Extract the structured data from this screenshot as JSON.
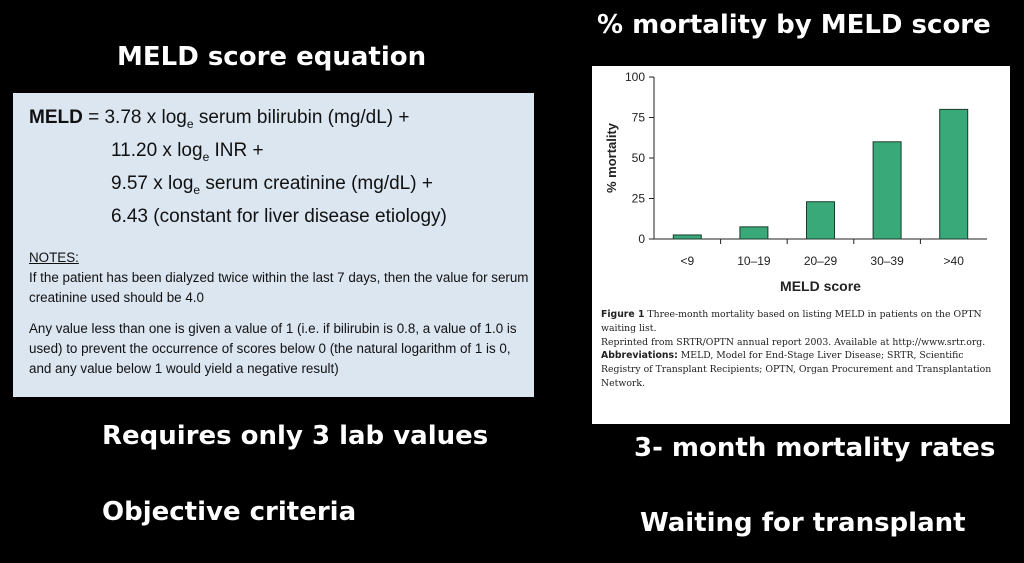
{
  "slide": {
    "meld_title": "MELD score equation",
    "chart_title": "% mortality by MELD score",
    "bullets_left": [
      "Requires only 3 lab values",
      "Objective criteria"
    ],
    "bullets_right": [
      "3- month mortality rates",
      "Waiting for transplant"
    ]
  },
  "equation": {
    "label": "MELD",
    "line1_rest": " = 3.78 x log",
    "sub_e": "e",
    "line1_tail": " serum bilirubin (mg/dL) +",
    "line2_a": "11.20 x log",
    "line2_b": " INR +",
    "line3_a": "9.57 x log",
    "line3_b": " serum creatinine (mg/dL) +",
    "line4": "6.43 (constant for liver disease etiology)",
    "notes_heading": "NOTES:",
    "note1": "If the patient has been dialyzed twice within the last 7 days, then the value for serum creatinine used should be 4.0",
    "note2": "Any value less than one is given a value of 1 (i.e. if bilirubin is 0.8, a value of 1.0 is used) to prevent the occurrence of scores below 0 (the natural logarithm of 1 is 0, and any value below 1 would yield a negative result)"
  },
  "caption": {
    "figure_label": "Figure 1",
    "figure_text": " Three-month mortality based on listing MELD in patients on the OPTN waiting list.",
    "reprint": "Reprinted from SRTR/OPTN annual report 2003. Available at http://www.srtr.org.",
    "abbr_label": "Abbreviations:",
    "abbr_text": " MELD, Model for End-Stage Liver Disease; SRTR, Scientific Registry of Transplant Recipients; OPTN, Organ Procurement and Transplantation Network."
  },
  "chart_data": {
    "type": "bar",
    "categories": [
      "<9",
      "10–19",
      "20–29",
      "30–39",
      ">40"
    ],
    "values": [
      2.5,
      7.5,
      23,
      60,
      80
    ],
    "xlabel": "MELD score",
    "ylabel": "% mortality",
    "ylim": [
      0,
      100
    ],
    "yticks": [
      0,
      25,
      50,
      75,
      100
    ],
    "grid": false,
    "legend": "none",
    "bar_color": "#3aa97a",
    "bar_edge": "#1b3b2c"
  }
}
